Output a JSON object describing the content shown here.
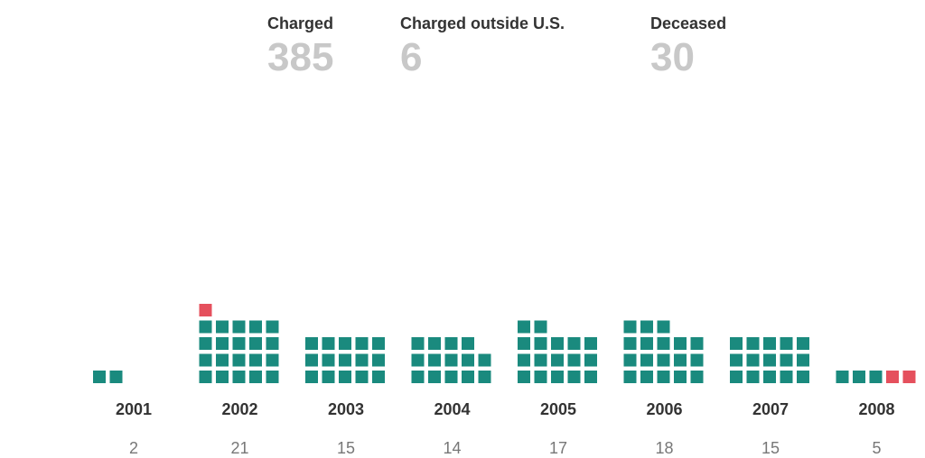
{
  "stats": {
    "charged": {
      "label": "Charged",
      "value": "385"
    },
    "charged_outside": {
      "label": "Charged outside U.S.",
      "value": "6"
    },
    "deceased": {
      "label": "Deceased",
      "value": "30"
    }
  },
  "colors": {
    "charged": "#1a8a7e",
    "deceased": "#e5505d"
  },
  "chart_data": {
    "type": "bar",
    "categories": [
      "2001",
      "2002",
      "2003",
      "2004",
      "2005",
      "2006",
      "2007",
      "2008"
    ],
    "values": [
      2,
      21,
      15,
      14,
      17,
      18,
      15,
      5
    ],
    "series": [
      {
        "values": [
          2,
          20,
          15,
          14,
          17,
          18,
          15,
          3
        ]
      },
      {
        "values": [
          0,
          1,
          0,
          0,
          0,
          0,
          0,
          2
        ]
      }
    ]
  }
}
